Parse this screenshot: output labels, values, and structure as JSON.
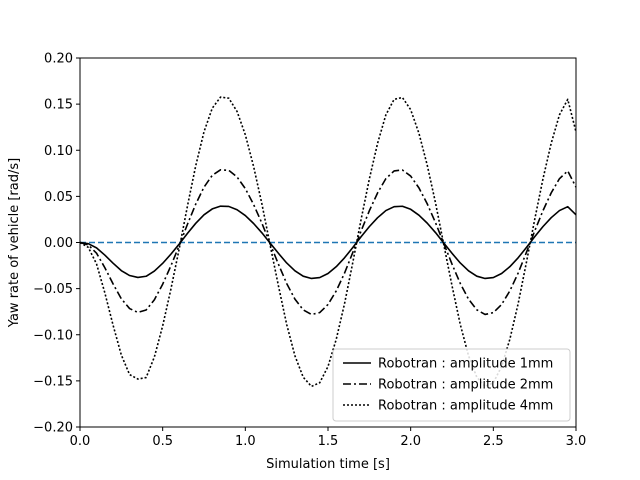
{
  "chart_data": {
    "type": "line",
    "title": "",
    "xlabel": "Simulation time [s]",
    "ylabel": "Yaw rate of vehicle [rad/s]",
    "xlim": [
      0.0,
      3.0
    ],
    "ylim": [
      -0.2,
      0.2
    ],
    "xticks": [
      "0.0",
      "0.5",
      "1.0",
      "1.5",
      "2.0",
      "2.5",
      "3.0"
    ],
    "xtick_values": [
      0.0,
      0.5,
      1.0,
      1.5,
      2.0,
      2.5,
      3.0
    ],
    "yticks": [
      "0.20",
      "0.15",
      "0.10",
      "0.05",
      "0.00",
      "−0.05",
      "−0.10",
      "−0.15",
      "−0.20"
    ],
    "ytick_values": [
      0.2,
      0.15,
      0.1,
      0.05,
      0.0,
      -0.05,
      -0.1,
      -0.15,
      -0.2
    ],
    "grid": false,
    "legend_position": "lower-right",
    "x": [
      0.0,
      0.05,
      0.1,
      0.15,
      0.2,
      0.25,
      0.3,
      0.35,
      0.4,
      0.45,
      0.5,
      0.55,
      0.6,
      0.65,
      0.7,
      0.75,
      0.8,
      0.85,
      0.9,
      0.95,
      1.0,
      1.05,
      1.1,
      1.15,
      1.2,
      1.25,
      1.3,
      1.35,
      1.4,
      1.45,
      1.5,
      1.55,
      1.6,
      1.65,
      1.7,
      1.75,
      1.8,
      1.85,
      1.9,
      1.95,
      2.0,
      2.05,
      2.1,
      2.15,
      2.2,
      2.25,
      2.3,
      2.35,
      2.4,
      2.45,
      2.5,
      2.55,
      2.6,
      2.65,
      2.7,
      2.75,
      2.8,
      2.85,
      2.9,
      2.95,
      3.0
    ],
    "series": [
      {
        "name": "Robotran : amplitude 1mm",
        "color": "#000000",
        "dash": "solid",
        "values": [
          0.0,
          -0.0013,
          -0.0058,
          -0.0136,
          -0.0224,
          -0.0305,
          -0.0358,
          -0.0379,
          -0.0366,
          -0.031,
          -0.0226,
          -0.0126,
          -0.0017,
          0.0099,
          0.0208,
          0.03,
          0.0364,
          0.0394,
          0.0391,
          0.0355,
          0.0292,
          0.0206,
          0.0105,
          -0.0007,
          -0.0117,
          -0.0222,
          -0.0307,
          -0.0365,
          -0.039,
          -0.038,
          -0.0336,
          -0.0262,
          -0.0166,
          -0.0054,
          0.0062,
          0.0172,
          0.0269,
          0.0346,
          0.0388,
          0.0393,
          0.036,
          0.0296,
          0.021,
          0.0108,
          -0.0005,
          -0.0117,
          -0.0222,
          -0.0307,
          -0.0365,
          -0.039,
          -0.038,
          -0.0336,
          -0.0262,
          -0.0166,
          -0.0054,
          0.0062,
          0.0172,
          0.0269,
          0.0346,
          0.0388,
          0.03
        ]
      },
      {
        "name": "Robotran : amplitude 2mm",
        "color": "#000000",
        "dash": "dashdot",
        "values": [
          0.0,
          -0.0026,
          -0.0116,
          -0.0272,
          -0.0448,
          -0.061,
          -0.0716,
          -0.0758,
          -0.0732,
          -0.062,
          -0.0452,
          -0.0252,
          -0.0034,
          0.0198,
          0.0416,
          0.06,
          0.0728,
          0.0788,
          0.0782,
          0.071,
          0.0584,
          0.0412,
          0.021,
          -0.0014,
          -0.0234,
          -0.0444,
          -0.0614,
          -0.073,
          -0.078,
          -0.076,
          -0.0672,
          -0.0524,
          -0.0332,
          -0.0108,
          0.0124,
          0.0344,
          0.0538,
          0.0692,
          0.0776,
          0.0786,
          0.072,
          0.0592,
          0.042,
          0.0216,
          -0.001,
          -0.0234,
          -0.0444,
          -0.0614,
          -0.073,
          -0.078,
          -0.076,
          -0.0672,
          -0.0524,
          -0.0332,
          -0.0108,
          0.0124,
          0.0344,
          0.0538,
          0.0692,
          0.0776,
          0.06
        ]
      },
      {
        "name": "Robotran : amplitude 4mm",
        "color": "#000000",
        "dash": "dotted",
        "values": [
          0.0,
          -0.0052,
          -0.0232,
          -0.0544,
          -0.0896,
          -0.122,
          -0.1432,
          -0.148,
          -0.1464,
          -0.124,
          -0.0904,
          -0.0504,
          -0.0068,
          0.0396,
          0.0832,
          0.12,
          0.1456,
          0.1576,
          0.1564,
          0.142,
          0.1168,
          0.0824,
          0.042,
          -0.0028,
          -0.0468,
          -0.0888,
          -0.1228,
          -0.146,
          -0.156,
          -0.152,
          -0.1344,
          -0.1048,
          -0.0664,
          -0.0216,
          0.0248,
          0.0688,
          0.1076,
          0.1384,
          0.1552,
          0.1572,
          0.144,
          0.1184,
          0.084,
          0.0432,
          -0.002,
          -0.0468,
          -0.0888,
          -0.1228,
          -0.146,
          -0.156,
          -0.152,
          -0.1344,
          -0.1048,
          -0.0664,
          -0.0216,
          0.0248,
          0.0688,
          0.1076,
          0.1384,
          0.1552,
          0.12
        ]
      },
      {
        "name": "",
        "color": "#1f77b4",
        "dash": "dashed",
        "values": [
          0.0,
          0.0,
          0.0,
          0.0,
          0.0,
          0.0,
          0.0,
          0.0,
          0.0,
          0.0,
          0.0,
          0.0,
          0.0,
          0.0,
          0.0,
          0.0,
          0.0,
          0.0,
          0.0,
          0.0,
          0.0,
          0.0,
          0.0,
          0.0,
          0.0,
          0.0,
          0.0,
          0.0,
          0.0,
          0.0,
          0.0,
          0.0,
          0.0,
          0.0,
          0.0,
          0.0,
          0.0,
          0.0,
          0.0,
          0.0,
          0.0,
          0.0,
          0.0,
          0.0,
          0.0,
          0.0,
          0.0,
          0.0,
          0.0,
          0.0,
          0.0,
          0.0,
          0.0,
          0.0,
          0.0,
          0.0,
          0.0,
          0.0,
          0.0,
          0.0,
          0.0
        ]
      }
    ]
  }
}
